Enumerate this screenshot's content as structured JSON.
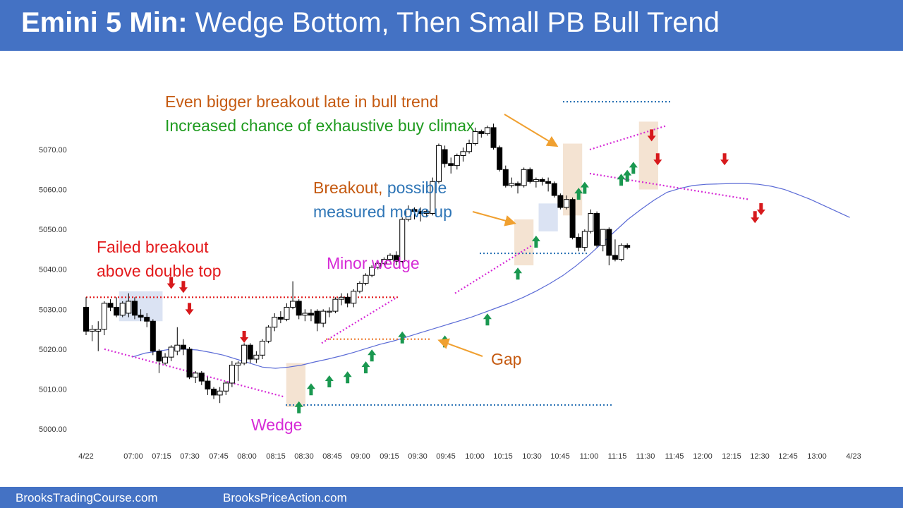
{
  "header": {
    "title_bold": "Emini 5 Min:",
    "title_rest": " Wedge Bottom, Then Small PB Bull Trend"
  },
  "footer": {
    "left_link": "BrooksTradingCourse.com",
    "right_link": "BrooksPriceAction.com"
  },
  "annotations": {
    "failed_breakout_line1": "Failed breakout",
    "failed_breakout_line2": "above double top",
    "minor_wedge": "Minor wedge",
    "wedge": "Wedge",
    "gap": "Gap",
    "breakout_word": "Breakout,",
    "possible_word": " possible",
    "measured_move": "measured move up",
    "bigger_breakout": "Even bigger breakout late in bull trend",
    "buy_climax": "Increased chance of exhaustive buy climax"
  },
  "colors": {
    "brand": "#4472c4",
    "annotation_red": "#e31a1c",
    "annotation_orange": "#c55a11",
    "annotation_green": "#1e9b1e",
    "annotation_blue": "#2e75b6",
    "annotation_magenta": "#d62ad6",
    "bull_arrow": "#1a9850",
    "bear_arrow": "#d7191c",
    "moving_average": "#5b6bd6"
  },
  "chart_data": {
    "type": "candlestick",
    "y_ticks": [
      "5070.00",
      "5060.00",
      "5050.00",
      "5040.00",
      "5030.00",
      "5020.00",
      "5010.00",
      "5000.00"
    ],
    "ylim": [
      4998,
      5085
    ],
    "x_ticks": [
      "4/22",
      "07:00",
      "07:15",
      "07:30",
      "07:45",
      "08:00",
      "08:15",
      "08:30",
      "08:45",
      "09:00",
      "09:15",
      "09:30",
      "09:45",
      "10:00",
      "10:15",
      "10:30",
      "10:45",
      "11:00",
      "11:15",
      "11:30",
      "11:45",
      "12:00",
      "12:15",
      "12:30",
      "12:45",
      "13:00",
      "4/23"
    ],
    "bars": [
      {
        "o": 5030.5,
        "h": 5033,
        "l": 5023.5,
        "c": 5024.5
      },
      {
        "o": 5024.5,
        "h": 5026,
        "l": 5022,
        "c": 5025
      },
      {
        "o": 5024.5,
        "h": 5027,
        "l": 5019.5,
        "c": 5025
      },
      {
        "o": 5025,
        "h": 5032,
        "l": 5023.5,
        "c": 5031.5
      },
      {
        "o": 5031.5,
        "h": 5032.5,
        "l": 5029.5,
        "c": 5030.5
      },
      {
        "o": 5030.5,
        "h": 5033,
        "l": 5028,
        "c": 5028.5
      },
      {
        "o": 5028.5,
        "h": 5032,
        "l": 5028,
        "c": 5031.5
      },
      {
        "o": 5029,
        "h": 5034,
        "l": 5028,
        "c": 5032
      },
      {
        "o": 5032,
        "h": 5033,
        "l": 5027.5,
        "c": 5028.5
      },
      {
        "o": 5028.5,
        "h": 5030,
        "l": 5027,
        "c": 5028
      },
      {
        "o": 5028,
        "h": 5029,
        "l": 5025.5,
        "c": 5027
      },
      {
        "o": 5027,
        "h": 5027.5,
        "l": 5018.5,
        "c": 5019.5
      },
      {
        "o": 5019.5,
        "h": 5020,
        "l": 5014,
        "c": 5017
      },
      {
        "o": 5016.5,
        "h": 5019,
        "l": 5016,
        "c": 5018
      },
      {
        "o": 5018,
        "h": 5021,
        "l": 5017,
        "c": 5020.5
      },
      {
        "o": 5019.5,
        "h": 5025.5,
        "l": 5018.5,
        "c": 5021
      },
      {
        "o": 5021,
        "h": 5022.5,
        "l": 5018.5,
        "c": 5020
      },
      {
        "o": 5020,
        "h": 5020.5,
        "l": 5012.5,
        "c": 5013
      },
      {
        "o": 5013,
        "h": 5014.5,
        "l": 5011.5,
        "c": 5014
      },
      {
        "o": 5014,
        "h": 5014.5,
        "l": 5011,
        "c": 5012
      },
      {
        "o": 5012,
        "h": 5013,
        "l": 5008.5,
        "c": 5010
      },
      {
        "o": 5010,
        "h": 5010.5,
        "l": 5007.5,
        "c": 5008.5
      },
      {
        "o": 5008.5,
        "h": 5010.5,
        "l": 5006.5,
        "c": 5009.5
      },
      {
        "o": 5009.5,
        "h": 5012,
        "l": 5008.5,
        "c": 5011.5
      },
      {
        "o": 5011.5,
        "h": 5017,
        "l": 5010.5,
        "c": 5016
      },
      {
        "o": 5016,
        "h": 5017,
        "l": 5012,
        "c": 5016.5
      },
      {
        "o": 5016.5,
        "h": 5021.5,
        "l": 5016,
        "c": 5021
      },
      {
        "o": 5021,
        "h": 5021.5,
        "l": 5016.5,
        "c": 5017.5
      },
      {
        "o": 5017.5,
        "h": 5019.5,
        "l": 5016.5,
        "c": 5018.5
      },
      {
        "o": 5018.5,
        "h": 5022.5,
        "l": 5017.5,
        "c": 5022
      },
      {
        "o": 5022,
        "h": 5026,
        "l": 5021.5,
        "c": 5025.5
      },
      {
        "o": 5025.5,
        "h": 5029,
        "l": 5024.5,
        "c": 5028
      },
      {
        "o": 5028,
        "h": 5029.5,
        "l": 5026.5,
        "c": 5027.5
      },
      {
        "o": 5027.5,
        "h": 5031.5,
        "l": 5027,
        "c": 5030.5
      },
      {
        "o": 5030.5,
        "h": 5037,
        "l": 5030,
        "c": 5032
      },
      {
        "o": 5032,
        "h": 5032.5,
        "l": 5027.5,
        "c": 5028.5
      },
      {
        "o": 5028.5,
        "h": 5030,
        "l": 5027,
        "c": 5029
      },
      {
        "o": 5029,
        "h": 5030,
        "l": 5027,
        "c": 5028.5
      },
      {
        "o": 5029.5,
        "h": 5030,
        "l": 5024.5,
        "c": 5026.5
      },
      {
        "o": 5026.5,
        "h": 5030,
        "l": 5025.5,
        "c": 5029.5
      },
      {
        "o": 5029.5,
        "h": 5030.5,
        "l": 5028,
        "c": 5029.5
      },
      {
        "o": 5029.5,
        "h": 5033,
        "l": 5029,
        "c": 5032.5
      },
      {
        "o": 5032.5,
        "h": 5034,
        "l": 5031,
        "c": 5033
      },
      {
        "o": 5033,
        "h": 5034,
        "l": 5030.5,
        "c": 5031.5
      },
      {
        "o": 5031.5,
        "h": 5035,
        "l": 5030.5,
        "c": 5034.5
      },
      {
        "o": 5034.5,
        "h": 5037,
        "l": 5034,
        "c": 5036.5
      },
      {
        "o": 5036.5,
        "h": 5039,
        "l": 5036,
        "c": 5038.5
      },
      {
        "o": 5038.5,
        "h": 5041,
        "l": 5038,
        "c": 5040.5
      },
      {
        "o": 5040.5,
        "h": 5042,
        "l": 5040,
        "c": 5041.5
      },
      {
        "o": 5041.5,
        "h": 5043,
        "l": 5041,
        "c": 5042.5
      },
      {
        "o": 5042.5,
        "h": 5044,
        "l": 5042,
        "c": 5043.5
      },
      {
        "o": 5043.5,
        "h": 5044.5,
        "l": 5041,
        "c": 5042
      },
      {
        "o": 5042,
        "h": 5053,
        "l": 5041.5,
        "c": 5052.5
      },
      {
        "o": 5052.5,
        "h": 5056,
        "l": 5052,
        "c": 5055
      },
      {
        "o": 5055,
        "h": 5055.5,
        "l": 5052.5,
        "c": 5054.5
      },
      {
        "o": 5054.5,
        "h": 5055.5,
        "l": 5052,
        "c": 5054
      },
      {
        "o": 5054,
        "h": 5055,
        "l": 5053,
        "c": 5054.5
      },
      {
        "o": 5054,
        "h": 5063,
        "l": 5053.5,
        "c": 5062
      },
      {
        "o": 5062,
        "h": 5071.5,
        "l": 5061.5,
        "c": 5071
      },
      {
        "o": 5070,
        "h": 5071,
        "l": 5065.5,
        "c": 5066.5
      },
      {
        "o": 5066.5,
        "h": 5068,
        "l": 5064,
        "c": 5066
      },
      {
        "o": 5066,
        "h": 5069,
        "l": 5065,
        "c": 5068.5
      },
      {
        "o": 5068.5,
        "h": 5070.5,
        "l": 5067,
        "c": 5069.5
      },
      {
        "o": 5069.5,
        "h": 5072.5,
        "l": 5069,
        "c": 5071.5
      },
      {
        "o": 5071.5,
        "h": 5075.5,
        "l": 5071,
        "c": 5074.5
      },
      {
        "o": 5074.5,
        "h": 5075,
        "l": 5073,
        "c": 5074
      },
      {
        "o": 5074,
        "h": 5076,
        "l": 5073.5,
        "c": 5075.5
      },
      {
        "o": 5075.5,
        "h": 5076.5,
        "l": 5070,
        "c": 5070.5
      },
      {
        "o": 5070.5,
        "h": 5071,
        "l": 5064.5,
        "c": 5065
      },
      {
        "o": 5065,
        "h": 5066,
        "l": 5060.5,
        "c": 5061
      },
      {
        "o": 5061,
        "h": 5063,
        "l": 5060.5,
        "c": 5061.5
      },
      {
        "o": 5061.5,
        "h": 5062,
        "l": 5059,
        "c": 5061
      },
      {
        "o": 5061,
        "h": 5065.5,
        "l": 5060.5,
        "c": 5065
      },
      {
        "o": 5065,
        "h": 5065.5,
        "l": 5061.5,
        "c": 5062
      },
      {
        "o": 5062,
        "h": 5063,
        "l": 5060.5,
        "c": 5062.5
      },
      {
        "o": 5062.5,
        "h": 5063,
        "l": 5061,
        "c": 5062
      },
      {
        "o": 5062,
        "h": 5063,
        "l": 5059.5,
        "c": 5061.5
      },
      {
        "o": 5061.5,
        "h": 5062,
        "l": 5058,
        "c": 5058.5
      },
      {
        "o": 5058.5,
        "h": 5059,
        "l": 5055,
        "c": 5055.5
      },
      {
        "o": 5055.5,
        "h": 5058.5,
        "l": 5055,
        "c": 5057.5
      },
      {
        "o": 5057.5,
        "h": 5058,
        "l": 5047.5,
        "c": 5048
      },
      {
        "o": 5048,
        "h": 5049,
        "l": 5044.5,
        "c": 5045.5
      },
      {
        "o": 5045.5,
        "h": 5050,
        "l": 5044.5,
        "c": 5049.5
      },
      {
        "o": 5049.5,
        "h": 5055,
        "l": 5049,
        "c": 5054
      },
      {
        "o": 5054,
        "h": 5054.5,
        "l": 5045.5,
        "c": 5046
      },
      {
        "o": 5046,
        "h": 5050,
        "l": 5044.5,
        "c": 5050
      },
      {
        "o": 5050,
        "h": 5050.5,
        "l": 5041,
        "c": 5043.5
      },
      {
        "o": 5043.5,
        "h": 5047.5,
        "l": 5042,
        "c": 5042.5
      },
      {
        "o": 5042.5,
        "h": 5046.5,
        "l": 5042,
        "c": 5046
      },
      {
        "o": 5046,
        "h": 5046.5,
        "l": 5045,
        "c": 5045.5
      }
    ],
    "moving_average": [
      5018,
      5019,
      5019.5,
      5020,
      5020,
      5019.8,
      5019.2,
      5018.5,
      5017.5,
      5016.5,
      5015.5,
      5015.2,
      5015.5,
      5016,
      5016.8,
      5017.5,
      5018.3,
      5019.2,
      5020.2,
      5021.2,
      5022,
      5023,
      5024,
      5025,
      5026,
      5027,
      5028,
      5029.2,
      5030.4,
      5031.6,
      5033,
      5034.6,
      5036.4,
      5038.4,
      5040.8,
      5043.5,
      5046.5,
      5049.5,
      5052.5,
      5055,
      5057.3,
      5059.3,
      5060.3,
      5061,
      5061.3,
      5061.4,
      5061.5,
      5061.5,
      5061.3,
      5060.8,
      5060,
      5058.8,
      5057.5,
      5056,
      5054.5,
      5053
    ],
    "annotation_lines": {
      "double_top_level": 5033,
      "bottom_level": 5006,
      "gap_level": 5022.5,
      "measured_move_level": 5044,
      "measured_move_target": 5082
    }
  }
}
